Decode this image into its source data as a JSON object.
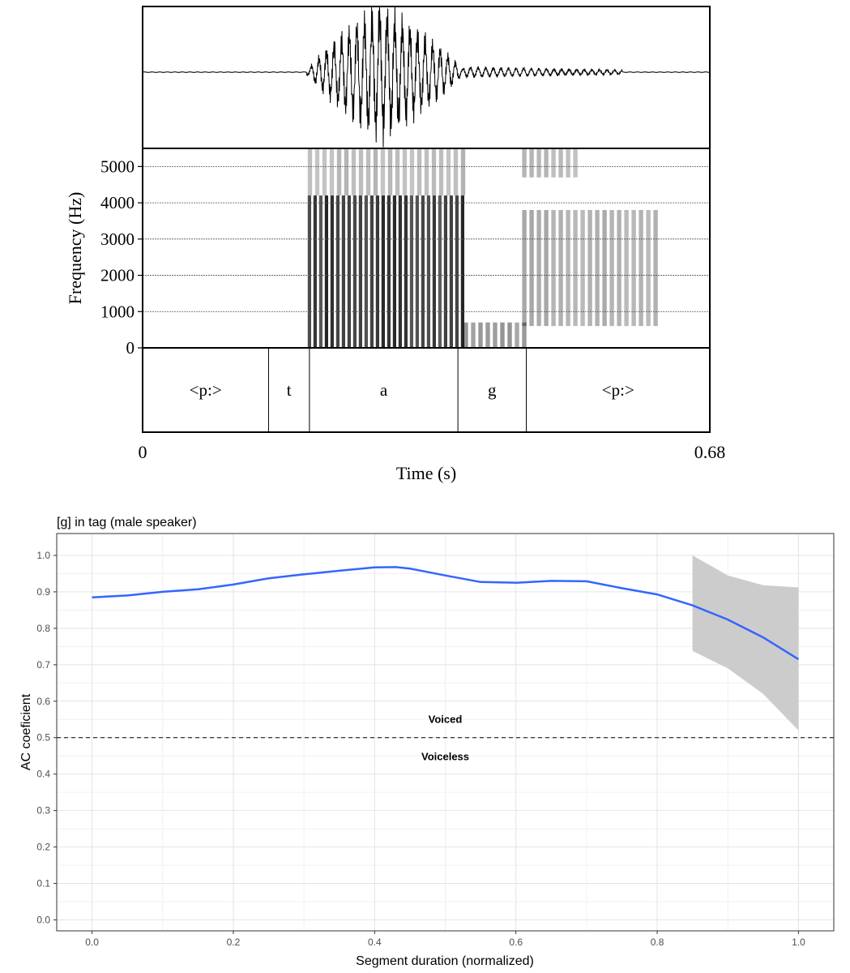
{
  "chart_data": [
    {
      "type": "spectrogram",
      "title": "",
      "ylabel": "Frequency (Hz)",
      "xlabel": "Time (s)",
      "x_start_label": "0",
      "x_end_label": "0.68",
      "xlim": [
        0,
        0.68
      ],
      "ylim": [
        0,
        5500
      ],
      "y_ticks": [
        {
          "value": 0,
          "label": "0"
        },
        {
          "value": 1000,
          "label": "1000"
        },
        {
          "value": 2000,
          "label": "2000"
        },
        {
          "value": 3000,
          "label": "3000"
        },
        {
          "value": 4000,
          "label": "4000"
        },
        {
          "value": 5000,
          "label": "5000"
        }
      ],
      "waveform": {
        "bursts": [
          {
            "start": 0.197,
            "end": 0.385,
            "peak": 0.285,
            "amp": 1.0
          },
          {
            "start": 0.385,
            "end": 0.575,
            "amp": 0.08
          }
        ]
      },
      "energy_regions": [
        {
          "t0": 0.198,
          "t1": 0.385,
          "f0": 0,
          "f1": 4200,
          "intensity": 0.85
        },
        {
          "t0": 0.198,
          "t1": 0.385,
          "f0": 4200,
          "f1": 5500,
          "intensity": 0.3
        },
        {
          "t0": 0.385,
          "t1": 0.46,
          "f0": 0,
          "f1": 700,
          "intensity": 0.45
        },
        {
          "t0": 0.455,
          "t1": 0.62,
          "f0": 600,
          "f1": 3800,
          "intensity": 0.35
        },
        {
          "t0": 0.455,
          "t1": 0.52,
          "f0": 4700,
          "f1": 5500,
          "intensity": 0.3
        }
      ],
      "segments": [
        {
          "label": "<p:>",
          "start": 0.0,
          "end": 0.151
        },
        {
          "label": "t",
          "start": 0.151,
          "end": 0.2
        },
        {
          "label": "a",
          "start": 0.2,
          "end": 0.378
        },
        {
          "label": "g",
          "start": 0.378,
          "end": 0.46
        },
        {
          "label": "<p:>",
          "start": 0.46,
          "end": 0.68
        }
      ]
    },
    {
      "type": "line",
      "title": "[g] in tag (male speaker)",
      "xlabel": "Segment duration (normalized)",
      "ylabel": "AC coeficient",
      "xlim": [
        -0.05,
        1.05
      ],
      "ylim": [
        -0.03,
        1.06
      ],
      "x_ticks": [
        "0.0",
        "0.2",
        "0.4",
        "0.6",
        "0.8",
        "1.0"
      ],
      "y_ticks": [
        "0.0",
        "0.1",
        "0.2",
        "0.3",
        "0.4",
        "0.5",
        "0.6",
        "0.7",
        "0.8",
        "0.9",
        "1.0"
      ],
      "grid": true,
      "line_color": "#3366ff",
      "ribbon_color": "#cccccc",
      "series": [
        {
          "name": "AC coefficient",
          "x": [
            0.0,
            0.05,
            0.1,
            0.15,
            0.2,
            0.25,
            0.3,
            0.35,
            0.4,
            0.43,
            0.45,
            0.5,
            0.55,
            0.6,
            0.65,
            0.7,
            0.75,
            0.8,
            0.85,
            0.9,
            0.95,
            1.0
          ],
          "y": [
            0.885,
            0.89,
            0.9,
            0.907,
            0.92,
            0.937,
            0.948,
            0.958,
            0.967,
            0.968,
            0.964,
            0.945,
            0.927,
            0.925,
            0.93,
            0.929,
            0.91,
            0.893,
            0.863,
            0.824,
            0.775,
            0.715
          ]
        }
      ],
      "ribbon": {
        "x": [
          0.85,
          0.9,
          0.95,
          1.0
        ],
        "lower": [
          0.738,
          0.69,
          0.62,
          0.52
        ],
        "upper": [
          1.0,
          0.945,
          0.918,
          0.912
        ]
      },
      "reference_line": {
        "y": 0.5,
        "style": "dashed"
      },
      "annotations": [
        {
          "text": "Voiced",
          "x": 0.5,
          "y": 0.55
        },
        {
          "text": "Voiceless",
          "x": 0.5,
          "y": 0.447
        }
      ]
    }
  ]
}
